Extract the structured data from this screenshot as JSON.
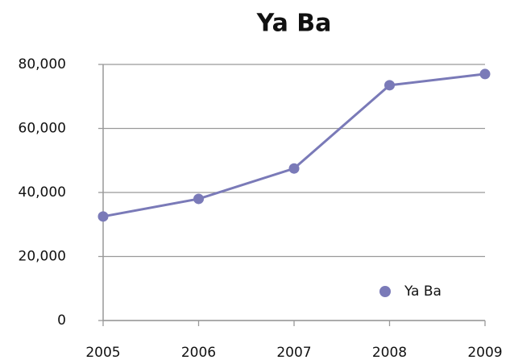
{
  "chart_data": {
    "type": "line",
    "title": "Ya Ba",
    "x": [
      2005,
      2006,
      2007,
      2008,
      2009
    ],
    "series": [
      {
        "name": "Ya Ba",
        "color": "#7a7ab8",
        "values": [
          32500,
          38000,
          47500,
          73500,
          77000
        ]
      }
    ],
    "xlim": [
      2005,
      2009
    ],
    "xticks": [
      2005,
      2006,
      2007,
      2008,
      2009
    ],
    "ylim": [
      0,
      80000
    ],
    "yticks": [
      0,
      {
        "value": 20000,
        "label": "20,000"
      },
      {
        "value": 40000,
        "label": "40,000"
      },
      {
        "value": 60000,
        "label": "60,000"
      },
      {
        "value": 80000,
        "label": "80,000"
      }
    ],
    "grid": true,
    "legend": "lower right"
  }
}
